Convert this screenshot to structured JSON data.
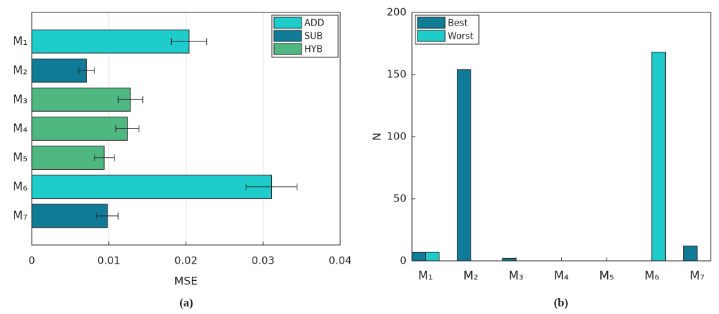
{
  "chart_data": [
    {
      "type": "barh",
      "caption": "(a)",
      "xlabel": "MSE",
      "categories": [
        "M₁",
        "M₂",
        "M₃",
        "M₄",
        "M₅",
        "M₆",
        "M₇"
      ],
      "series": [
        {
          "name": "ADD",
          "color": "#1fcccc",
          "values": [
            0.0204,
            null,
            null,
            null,
            null,
            0.0311,
            null
          ],
          "errors": [
            0.0023,
            null,
            null,
            null,
            null,
            0.0033,
            null
          ]
        },
        {
          "name": "SUB",
          "color": "#0f7b96",
          "values": [
            null,
            0.0071,
            null,
            null,
            null,
            null,
            0.0098
          ],
          "errors": [
            null,
            0.001,
            null,
            null,
            null,
            null,
            0.0014
          ]
        },
        {
          "name": "HYB",
          "color": "#4fb780",
          "values": [
            null,
            null,
            0.0128,
            0.0124,
            0.0094,
            null,
            null
          ],
          "errors": [
            null,
            null,
            0.0016,
            0.0015,
            0.0013,
            null,
            null
          ]
        }
      ],
      "xlim": [
        0,
        0.04
      ],
      "xticks": [
        0,
        0.01,
        0.02,
        0.03,
        0.04
      ],
      "grid": true,
      "legend": "top-right"
    },
    {
      "type": "bar",
      "caption": "(b)",
      "ylabel": "N",
      "categories": [
        "M₁",
        "M₂",
        "M₃",
        "M₄",
        "M₅",
        "M₆",
        "M₇"
      ],
      "series": [
        {
          "name": "Best",
          "color": "#0f7b96",
          "values": [
            7,
            154,
            2,
            0,
            0,
            0,
            12
          ]
        },
        {
          "name": "Worst",
          "color": "#1fcccc",
          "values": [
            7,
            0,
            0,
            0,
            0,
            168,
            0
          ]
        }
      ],
      "ylim": [
        0,
        200
      ],
      "yticks": [
        0,
        50,
        100,
        150,
        200
      ],
      "grid": false,
      "legend": "top-left"
    }
  ]
}
